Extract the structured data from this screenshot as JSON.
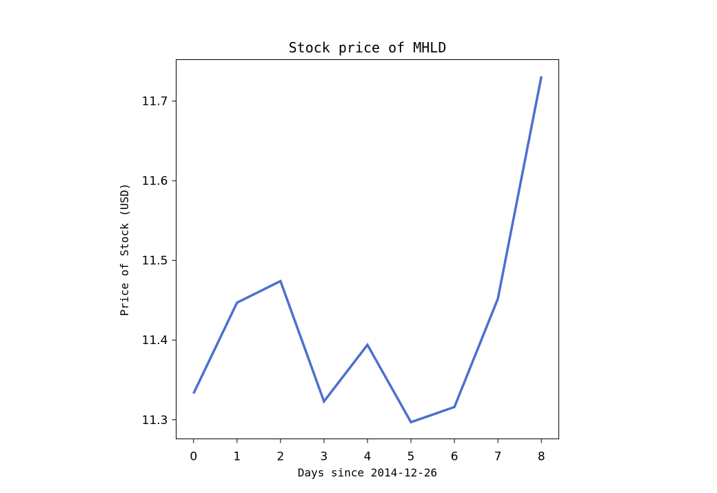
{
  "chart_data": {
    "type": "line",
    "title": "Stock price of MHLD",
    "xlabel": "Days since 2014-12-26",
    "ylabel": "Price of Stock (USD)",
    "x": [
      0,
      1,
      2,
      3,
      4,
      5,
      6,
      7,
      8
    ],
    "series": [
      {
        "values": [
          11.333,
          11.447,
          11.474,
          11.323,
          11.394,
          11.297,
          11.316,
          11.452,
          11.731
        ]
      }
    ],
    "xlim": [
      -0.4,
      8.4
    ],
    "ylim": [
      11.276,
      11.752
    ],
    "xticks": [
      0,
      1,
      2,
      3,
      4,
      5,
      6,
      7,
      8
    ],
    "yticks": [
      11.3,
      11.4,
      11.5,
      11.6,
      11.7
    ],
    "ytick_labels": [
      "11.3",
      "11.4",
      "11.5",
      "11.6",
      "11.7"
    ],
    "grid": false,
    "line_color": "#4c6fcf"
  }
}
